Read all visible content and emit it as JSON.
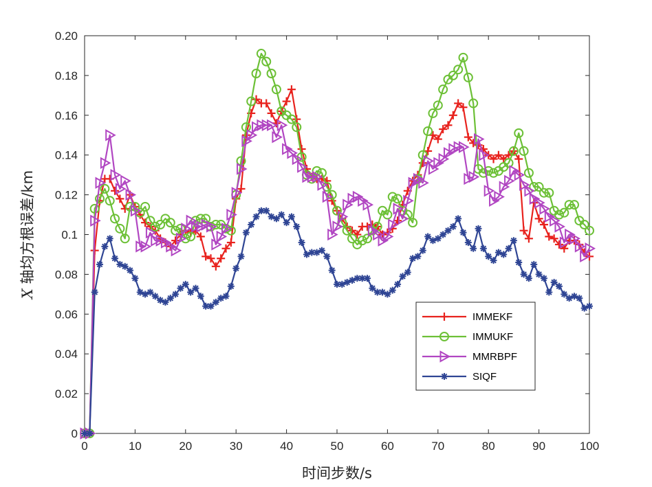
{
  "chart_data": {
    "type": "line",
    "xlabel": "时间步数/s",
    "ylabel_var": "X",
    "ylabel_rest": " 轴均方根误差/km",
    "xlim": [
      0,
      100
    ],
    "ylim": [
      0,
      0.2
    ],
    "xticks": [
      0,
      10,
      20,
      30,
      40,
      50,
      60,
      70,
      80,
      90,
      100
    ],
    "yticks": [
      0,
      0.02,
      0.04,
      0.06,
      0.08,
      0.1,
      0.12,
      0.14,
      0.16,
      0.18,
      0.2
    ],
    "ytick_labels": [
      "0",
      "0.02",
      "0.04",
      "0.06",
      "0.08",
      "0.1",
      "0.12",
      "0.14",
      "0.16",
      "0.18",
      "0.20"
    ],
    "grid": false,
    "legend_position": "lower-right",
    "x": [
      0,
      1,
      2,
      3,
      4,
      5,
      6,
      7,
      8,
      9,
      10,
      11,
      12,
      13,
      14,
      15,
      16,
      17,
      18,
      19,
      20,
      21,
      22,
      23,
      24,
      25,
      26,
      27,
      28,
      29,
      30,
      31,
      32,
      33,
      34,
      35,
      36,
      37,
      38,
      39,
      40,
      41,
      42,
      43,
      44,
      45,
      46,
      47,
      48,
      49,
      50,
      51,
      52,
      53,
      54,
      55,
      56,
      57,
      58,
      59,
      60,
      61,
      62,
      63,
      64,
      65,
      66,
      67,
      68,
      69,
      70,
      71,
      72,
      73,
      74,
      75,
      76,
      77,
      78,
      79,
      80,
      81,
      82,
      83,
      84,
      85,
      86,
      87,
      88,
      89,
      90,
      91,
      92,
      93,
      94,
      95,
      96,
      97,
      98,
      99,
      100
    ],
    "series": [
      {
        "name": "IMMEKF",
        "color": "#e8221d",
        "marker": "plus",
        "values": [
          0,
          0,
          0.092,
          0.117,
          0.128,
          0.128,
          0.122,
          0.118,
          0.113,
          0.12,
          0.114,
          0.11,
          0.106,
          0.104,
          0.102,
          0.098,
          0.096,
          0.094,
          0.097,
          0.1,
          0.102,
          0.101,
          0.102,
          0.099,
          0.089,
          0.088,
          0.084,
          0.088,
          0.093,
          0.096,
          0.118,
          0.123,
          0.15,
          0.161,
          0.168,
          0.166,
          0.166,
          0.161,
          0.156,
          0.162,
          0.167,
          0.173,
          0.158,
          0.143,
          0.133,
          0.129,
          0.128,
          0.128,
          0.127,
          0.117,
          0.112,
          0.108,
          0.104,
          0.102,
          0.1,
          0.104,
          0.104,
          0.105,
          0.104,
          0.1,
          0.101,
          0.103,
          0.107,
          0.115,
          0.122,
          0.127,
          0.13,
          0.136,
          0.142,
          0.15,
          0.148,
          0.153,
          0.155,
          0.16,
          0.166,
          0.164,
          0.149,
          0.146,
          0.145,
          0.143,
          0.14,
          0.138,
          0.14,
          0.138,
          0.14,
          0.142,
          0.138,
          0.102,
          0.098,
          0.116,
          0.108,
          0.105,
          0.099,
          0.098,
          0.095,
          0.093,
          0.097,
          0.097,
          0.095,
          0.091,
          0.089
        ]
      },
      {
        "name": "IMMUKF",
        "color": "#6cc036",
        "marker": "circle",
        "values": [
          0,
          0,
          0.113,
          0.118,
          0.123,
          0.117,
          0.108,
          0.103,
          0.098,
          0.114,
          0.114,
          0.111,
          0.114,
          0.107,
          0.104,
          0.105,
          0.108,
          0.106,
          0.102,
          0.103,
          0.098,
          0.099,
          0.107,
          0.108,
          0.108,
          0.104,
          0.105,
          0.105,
          0.103,
          0.102,
          0.12,
          0.137,
          0.154,
          0.167,
          0.181,
          0.191,
          0.187,
          0.181,
          0.173,
          0.162,
          0.16,
          0.158,
          0.154,
          0.139,
          0.13,
          0.128,
          0.132,
          0.131,
          0.124,
          0.12,
          0.112,
          0.106,
          0.102,
          0.098,
          0.095,
          0.097,
          0.098,
          0.102,
          0.104,
          0.112,
          0.11,
          0.119,
          0.118,
          0.112,
          0.11,
          0.106,
          0.128,
          0.14,
          0.152,
          0.161,
          0.165,
          0.173,
          0.178,
          0.18,
          0.183,
          0.189,
          0.179,
          0.166,
          0.133,
          0.131,
          0.132,
          0.131,
          0.132,
          0.134,
          0.136,
          0.142,
          0.151,
          0.142,
          0.131,
          0.124,
          0.124,
          0.121,
          0.121,
          0.112,
          0.11,
          0.111,
          0.115,
          0.115,
          0.107,
          0.105,
          0.102
        ]
      },
      {
        "name": "MMRBPF",
        "color": "#b146c2",
        "marker": "triangle-right",
        "values": [
          0,
          0,
          0.107,
          0.126,
          0.136,
          0.15,
          0.13,
          0.123,
          0.127,
          0.12,
          0.112,
          0.094,
          0.094,
          0.101,
          0.097,
          0.097,
          0.096,
          0.094,
          0.092,
          0.098,
          0.103,
          0.107,
          0.104,
          0.104,
          0.105,
          0.104,
          0.095,
          0.099,
          0.103,
          0.11,
          0.121,
          0.133,
          0.147,
          0.15,
          0.154,
          0.155,
          0.155,
          0.155,
          0.149,
          0.155,
          0.143,
          0.141,
          0.138,
          0.134,
          0.129,
          0.129,
          0.129,
          0.125,
          0.119,
          0.1,
          0.104,
          0.109,
          0.115,
          0.118,
          0.119,
          0.117,
          0.115,
          0.102,
          0.1,
          0.097,
          0.099,
          0.105,
          0.113,
          0.108,
          0.117,
          0.126,
          0.128,
          0.126,
          0.137,
          0.133,
          0.136,
          0.138,
          0.141,
          0.143,
          0.144,
          0.144,
          0.128,
          0.129,
          0.148,
          0.14,
          0.122,
          0.117,
          0.119,
          0.124,
          0.127,
          0.132,
          0.13,
          0.125,
          0.122,
          0.118,
          0.116,
          0.113,
          0.109,
          0.107,
          0.104,
          0.096,
          0.1,
          0.098,
          0.094,
          0.089,
          0.093
        ]
      },
      {
        "name": "SIQF",
        "color": "#2f4594",
        "marker": "asterisk",
        "values": [
          0,
          0,
          0.071,
          0.085,
          0.094,
          0.098,
          0.088,
          0.085,
          0.084,
          0.082,
          0.078,
          0.071,
          0.07,
          0.071,
          0.069,
          0.067,
          0.066,
          0.068,
          0.07,
          0.073,
          0.075,
          0.071,
          0.073,
          0.069,
          0.064,
          0.064,
          0.066,
          0.068,
          0.069,
          0.074,
          0.083,
          0.089,
          0.101,
          0.105,
          0.109,
          0.112,
          0.112,
          0.109,
          0.108,
          0.11,
          0.106,
          0.109,
          0.104,
          0.096,
          0.09,
          0.091,
          0.091,
          0.092,
          0.089,
          0.082,
          0.075,
          0.075,
          0.076,
          0.077,
          0.078,
          0.078,
          0.078,
          0.073,
          0.071,
          0.071,
          0.07,
          0.072,
          0.075,
          0.079,
          0.081,
          0.088,
          0.089,
          0.092,
          0.099,
          0.097,
          0.098,
          0.1,
          0.102,
          0.104,
          0.108,
          0.101,
          0.096,
          0.093,
          0.103,
          0.093,
          0.089,
          0.087,
          0.091,
          0.09,
          0.093,
          0.097,
          0.086,
          0.08,
          0.078,
          0.085,
          0.08,
          0.078,
          0.071,
          0.076,
          0.074,
          0.07,
          0.068,
          0.069,
          0.068,
          0.063,
          0.064
        ]
      }
    ]
  }
}
